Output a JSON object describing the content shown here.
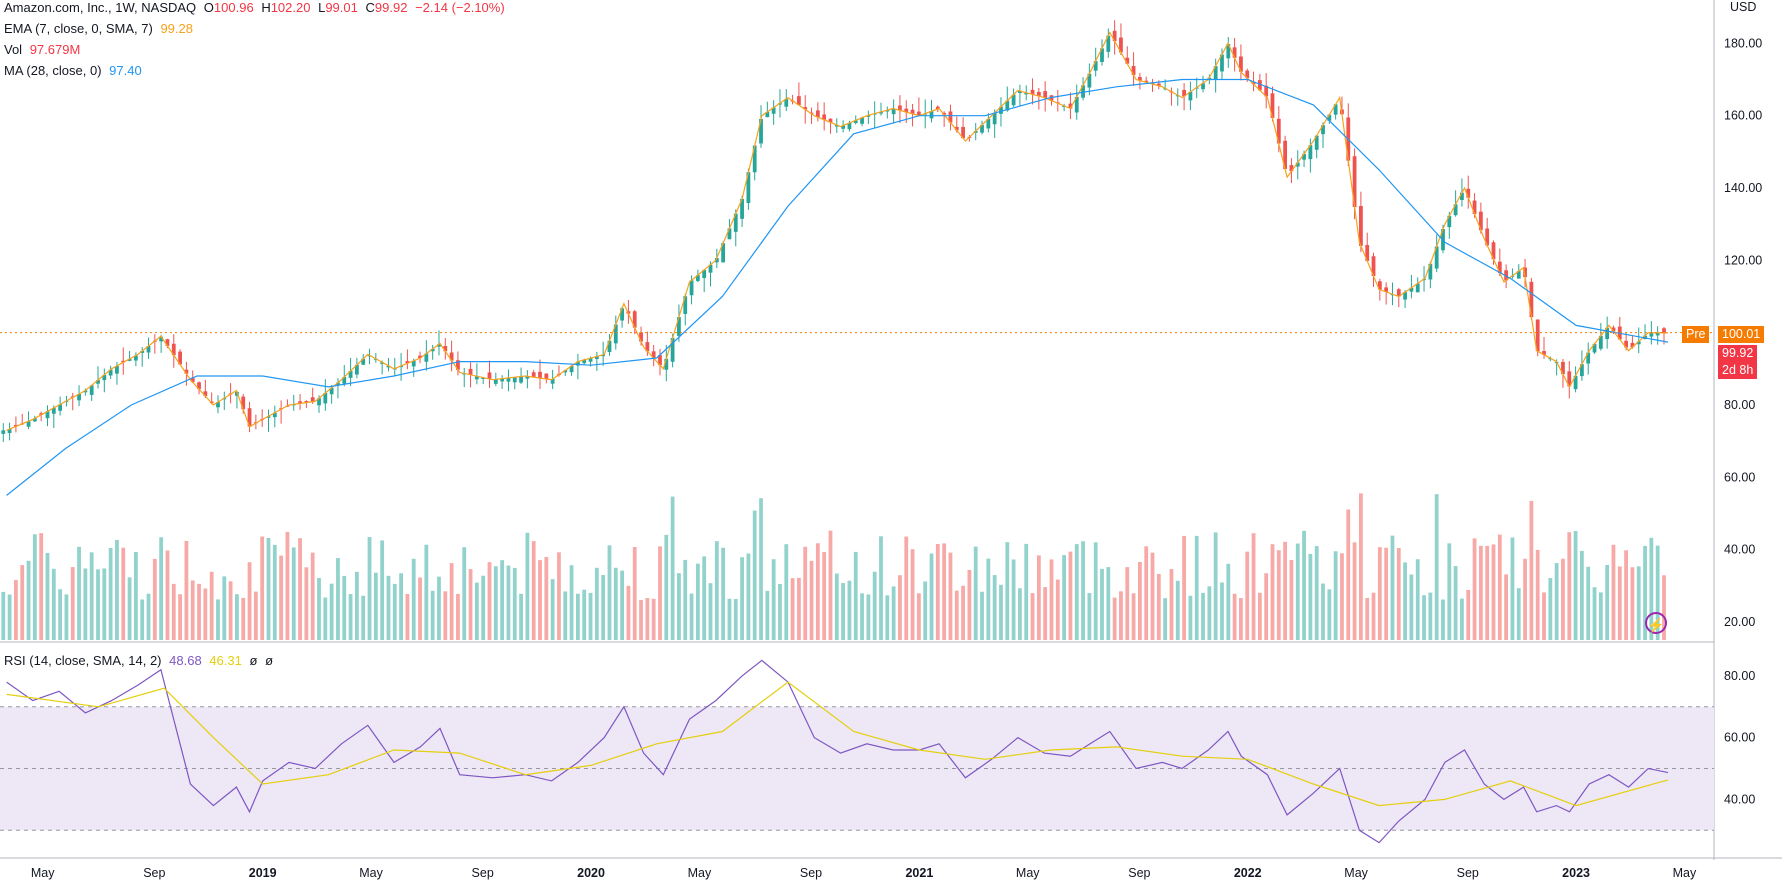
{
  "header": {
    "symbol_line": "Amazon.com, Inc., 1W, NASDAQ",
    "open_label": "O",
    "open": "100.96",
    "high_label": "H",
    "high": "102.20",
    "low_label": "L",
    "low": "99.01",
    "close_label": "C",
    "close": "99.92",
    "change": "−2.14 (−2.10%)"
  },
  "indicators": {
    "ema_label": "EMA (7, close, 0, SMA, 7)",
    "ema_value": "99.28",
    "vol_label": "Vol",
    "vol_value": "97.679M",
    "ma_label": "MA (28, close, 0)",
    "ma_value": "97.40",
    "rsi_label": "RSI (14, close, SMA, 14, 2)",
    "rsi_value": "48.68",
    "rsi_sma": "46.31",
    "rsi_extra1": "ø",
    "rsi_extra2": "ø"
  },
  "price_axis": {
    "currency": "USD",
    "ticks": [
      "180.00",
      "160.00",
      "140.00",
      "120.00",
      "100.00",
      "80.00",
      "60.00",
      "40.00",
      "20.00"
    ]
  },
  "rsi_axis": {
    "ticks": [
      "80.00",
      "60.00",
      "40.00"
    ]
  },
  "tags": {
    "pre_label": "Pre",
    "pre_price": "100.01",
    "last_price": "99.92",
    "countdown": "2d 8h"
  },
  "time_axis": {
    "labels": [
      "May",
      "Sep",
      "2019",
      "May",
      "Sep",
      "2020",
      "May",
      "Sep",
      "2021",
      "May",
      "Sep",
      "2022",
      "May",
      "Sep",
      "2023",
      "May"
    ]
  },
  "colors": {
    "up": "#26a69a",
    "down": "#ef5350",
    "ema": "#f7a21b",
    "ma": "#2196f3",
    "rsi": "#7e57c2",
    "rsi_sma": "#e5cf0f",
    "rsi_band": "#ede7f6"
  },
  "chart_data": {
    "type": "candlestick",
    "price_range": [
      15,
      192
    ],
    "rsi_range": [
      22,
      90
    ],
    "close_trace": [
      [
        2018.22,
        73
      ],
      [
        2018.3,
        76
      ],
      [
        2018.38,
        80
      ],
      [
        2018.46,
        84
      ],
      [
        2018.54,
        90
      ],
      [
        2018.62,
        94
      ],
      [
        2018.69,
        99
      ],
      [
        2018.78,
        87
      ],
      [
        2018.85,
        80
      ],
      [
        2018.92,
        84
      ],
      [
        2018.96,
        74
      ],
      [
        2019.0,
        76
      ],
      [
        2019.08,
        80
      ],
      [
        2019.16,
        81
      ],
      [
        2019.24,
        87
      ],
      [
        2019.32,
        94
      ],
      [
        2019.4,
        90
      ],
      [
        2019.48,
        93
      ],
      [
        2019.54,
        97
      ],
      [
        2019.6,
        89
      ],
      [
        2019.7,
        87
      ],
      [
        2019.8,
        88
      ],
      [
        2019.88,
        87
      ],
      [
        2019.96,
        92
      ],
      [
        2020.04,
        94
      ],
      [
        2020.1,
        108
      ],
      [
        2020.16,
        96
      ],
      [
        2020.22,
        90
      ],
      [
        2020.3,
        114
      ],
      [
        2020.38,
        120
      ],
      [
        2020.46,
        137
      ],
      [
        2020.52,
        160
      ],
      [
        2020.6,
        165
      ],
      [
        2020.68,
        160
      ],
      [
        2020.76,
        157
      ],
      [
        2020.84,
        160
      ],
      [
        2020.92,
        162
      ],
      [
        2021.0,
        160
      ],
      [
        2021.06,
        162
      ],
      [
        2021.14,
        153
      ],
      [
        2021.22,
        160
      ],
      [
        2021.3,
        167
      ],
      [
        2021.38,
        165
      ],
      [
        2021.46,
        162
      ],
      [
        2021.52,
        172
      ],
      [
        2021.58,
        183
      ],
      [
        2021.66,
        170
      ],
      [
        2021.74,
        168
      ],
      [
        2021.8,
        165
      ],
      [
        2021.88,
        170
      ],
      [
        2021.94,
        180
      ],
      [
        2021.98,
        172
      ],
      [
        2022.06,
        165
      ],
      [
        2022.12,
        143
      ],
      [
        2022.2,
        153
      ],
      [
        2022.28,
        165
      ],
      [
        2022.34,
        125
      ],
      [
        2022.4,
        112
      ],
      [
        2022.46,
        110
      ],
      [
        2022.54,
        115
      ],
      [
        2022.6,
        130
      ],
      [
        2022.66,
        140
      ],
      [
        2022.72,
        126
      ],
      [
        2022.78,
        114
      ],
      [
        2022.84,
        118
      ],
      [
        2022.88,
        95
      ],
      [
        2022.94,
        92
      ],
      [
        2022.98,
        85
      ],
      [
        2023.04,
        95
      ],
      [
        2023.1,
        102
      ],
      [
        2023.16,
        95
      ],
      [
        2023.22,
        100
      ],
      [
        2023.28,
        99.92
      ]
    ],
    "ma_trace": [
      [
        2018.22,
        55
      ],
      [
        2018.4,
        68
      ],
      [
        2018.6,
        80
      ],
      [
        2018.8,
        88
      ],
      [
        2019.0,
        88
      ],
      [
        2019.2,
        85
      ],
      [
        2019.4,
        88
      ],
      [
        2019.6,
        92
      ],
      [
        2019.8,
        92
      ],
      [
        2020.0,
        91
      ],
      [
        2020.2,
        93
      ],
      [
        2020.4,
        110
      ],
      [
        2020.6,
        135
      ],
      [
        2020.8,
        155
      ],
      [
        2021.0,
        160
      ],
      [
        2021.2,
        160
      ],
      [
        2021.4,
        165
      ],
      [
        2021.6,
        168
      ],
      [
        2021.8,
        170
      ],
      [
        2022.0,
        170
      ],
      [
        2022.2,
        163
      ],
      [
        2022.4,
        145
      ],
      [
        2022.6,
        125
      ],
      [
        2022.8,
        115
      ],
      [
        2023.0,
        102
      ],
      [
        2023.28,
        97.4
      ]
    ],
    "rsi_trace": [
      [
        2018.22,
        78
      ],
      [
        2018.3,
        72
      ],
      [
        2018.38,
        75
      ],
      [
        2018.46,
        68
      ],
      [
        2018.54,
        72
      ],
      [
        2018.62,
        77
      ],
      [
        2018.69,
        82
      ],
      [
        2018.78,
        45
      ],
      [
        2018.85,
        38
      ],
      [
        2018.92,
        44
      ],
      [
        2018.96,
        36
      ],
      [
        2019.0,
        46
      ],
      [
        2019.08,
        52
      ],
      [
        2019.16,
        50
      ],
      [
        2019.24,
        58
      ],
      [
        2019.32,
        64
      ],
      [
        2019.4,
        52
      ],
      [
        2019.48,
        57
      ],
      [
        2019.54,
        63
      ],
      [
        2019.6,
        48
      ],
      [
        2019.7,
        47
      ],
      [
        2019.8,
        48
      ],
      [
        2019.88,
        46
      ],
      [
        2019.96,
        52
      ],
      [
        2020.04,
        60
      ],
      [
        2020.1,
        70
      ],
      [
        2020.16,
        55
      ],
      [
        2020.22,
        48
      ],
      [
        2020.3,
        66
      ],
      [
        2020.38,
        72
      ],
      [
        2020.46,
        80
      ],
      [
        2020.52,
        85
      ],
      [
        2020.6,
        78
      ],
      [
        2020.68,
        60
      ],
      [
        2020.76,
        55
      ],
      [
        2020.84,
        58
      ],
      [
        2020.92,
        56
      ],
      [
        2021.0,
        56
      ],
      [
        2021.06,
        58
      ],
      [
        2021.14,
        47
      ],
      [
        2021.22,
        53
      ],
      [
        2021.3,
        60
      ],
      [
        2021.38,
        55
      ],
      [
        2021.46,
        54
      ],
      [
        2021.52,
        58
      ],
      [
        2021.58,
        62
      ],
      [
        2021.66,
        50
      ],
      [
        2021.74,
        52
      ],
      [
        2021.8,
        50
      ],
      [
        2021.88,
        56
      ],
      [
        2021.94,
        62
      ],
      [
        2021.98,
        54
      ],
      [
        2022.06,
        48
      ],
      [
        2022.12,
        35
      ],
      [
        2022.2,
        42
      ],
      [
        2022.28,
        50
      ],
      [
        2022.34,
        30
      ],
      [
        2022.4,
        26
      ],
      [
        2022.46,
        33
      ],
      [
        2022.54,
        40
      ],
      [
        2022.6,
        52
      ],
      [
        2022.66,
        56
      ],
      [
        2022.72,
        45
      ],
      [
        2022.78,
        40
      ],
      [
        2022.84,
        44
      ],
      [
        2022.88,
        36
      ],
      [
        2022.94,
        38
      ],
      [
        2022.98,
        36
      ],
      [
        2023.04,
        45
      ],
      [
        2023.1,
        48
      ],
      [
        2023.16,
        44
      ],
      [
        2023.22,
        50
      ],
      [
        2023.28,
        48.68
      ]
    ],
    "rsi_sma_trace": [
      [
        2018.22,
        74
      ],
      [
        2018.5,
        70
      ],
      [
        2018.7,
        76
      ],
      [
        2018.85,
        60
      ],
      [
        2019.0,
        45
      ],
      [
        2019.2,
        48
      ],
      [
        2019.4,
        56
      ],
      [
        2019.6,
        55
      ],
      [
        2019.8,
        48
      ],
      [
        2020.0,
        51
      ],
      [
        2020.2,
        58
      ],
      [
        2020.4,
        62
      ],
      [
        2020.6,
        78
      ],
      [
        2020.8,
        62
      ],
      [
        2021.0,
        56
      ],
      [
        2021.2,
        53
      ],
      [
        2021.4,
        56
      ],
      [
        2021.6,
        57
      ],
      [
        2021.8,
        54
      ],
      [
        2022.0,
        53
      ],
      [
        2022.2,
        45
      ],
      [
        2022.4,
        38
      ],
      [
        2022.6,
        40
      ],
      [
        2022.8,
        46
      ],
      [
        2023.0,
        38
      ],
      [
        2023.28,
        46.31
      ]
    ]
  }
}
